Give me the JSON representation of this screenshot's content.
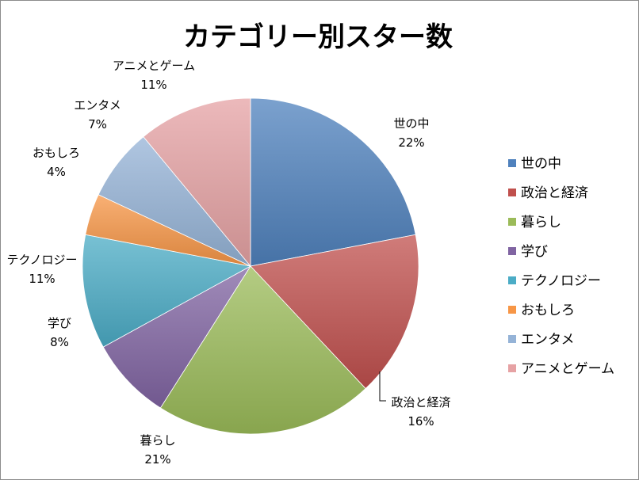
{
  "chart_data": {
    "type": "pie",
    "title": "カテゴリー別スター数",
    "legend_position": "right",
    "slices": [
      {
        "label": "世の中",
        "percent": 22,
        "percent_label": "22%",
        "color": "#4f81bd"
      },
      {
        "label": "政治と経済",
        "percent": 16,
        "percent_label": "16%",
        "color": "#c0504d"
      },
      {
        "label": "暮らし",
        "percent": 21,
        "percent_label": "21%",
        "color": "#9bbb59"
      },
      {
        "label": "学び",
        "percent": 8,
        "percent_label": "8%",
        "color": "#8064a2"
      },
      {
        "label": "テクノロジー",
        "percent": 11,
        "percent_label": "11%",
        "color": "#4bacc6"
      },
      {
        "label": "おもしろ",
        "percent": 4,
        "percent_label": "4%",
        "color": "#f79646"
      },
      {
        "label": "エンタメ",
        "percent": 7,
        "percent_label": "7%",
        "color": "#95b3d7"
      },
      {
        "label": "アニメとゲーム",
        "percent": 11,
        "percent_label": "11%",
        "color": "#e6a2a4"
      }
    ]
  }
}
